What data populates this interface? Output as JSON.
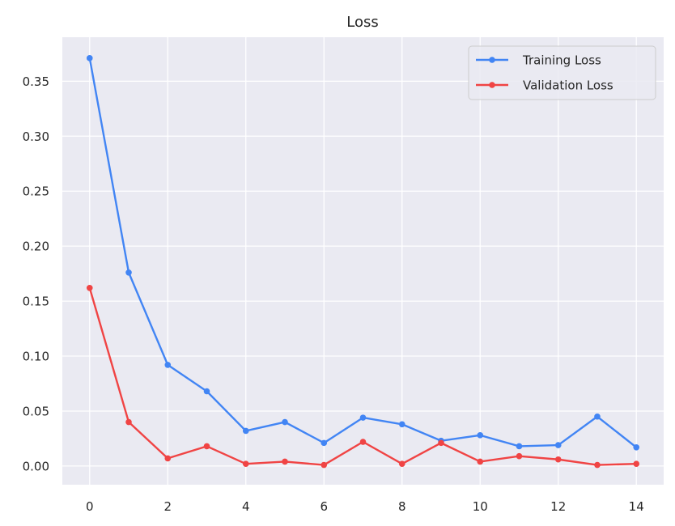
{
  "chart_data": {
    "type": "line",
    "title": "Loss",
    "xlabel": "",
    "ylabel": "",
    "x": [
      0,
      1,
      2,
      3,
      4,
      5,
      6,
      7,
      8,
      9,
      10,
      11,
      12,
      13,
      14
    ],
    "xlim": [
      -0.7,
      14.7
    ],
    "ylim": [
      -0.017,
      0.39
    ],
    "xticks": [
      0,
      2,
      4,
      6,
      8,
      10,
      12,
      14
    ],
    "yticks": [
      0.0,
      0.05,
      0.1,
      0.15,
      0.2,
      0.25,
      0.3,
      0.35
    ],
    "ytick_labels": [
      "0.00",
      "0.05",
      "0.10",
      "0.15",
      "0.20",
      "0.25",
      "0.30",
      "0.35"
    ],
    "grid": true,
    "legend_position": "top-right",
    "series": [
      {
        "name": "Training Loss",
        "color": "#4285f4",
        "values": [
          0.371,
          0.176,
          0.092,
          0.068,
          0.032,
          0.04,
          0.021,
          0.044,
          0.038,
          0.023,
          0.028,
          0.018,
          0.019,
          0.045,
          0.017
        ]
      },
      {
        "name": "Validation Loss",
        "color": "#f04444",
        "values": [
          0.162,
          0.04,
          0.007,
          0.018,
          0.002,
          0.004,
          0.001,
          0.022,
          0.002,
          0.021,
          0.004,
          0.009,
          0.006,
          0.001,
          0.002
        ]
      }
    ]
  }
}
